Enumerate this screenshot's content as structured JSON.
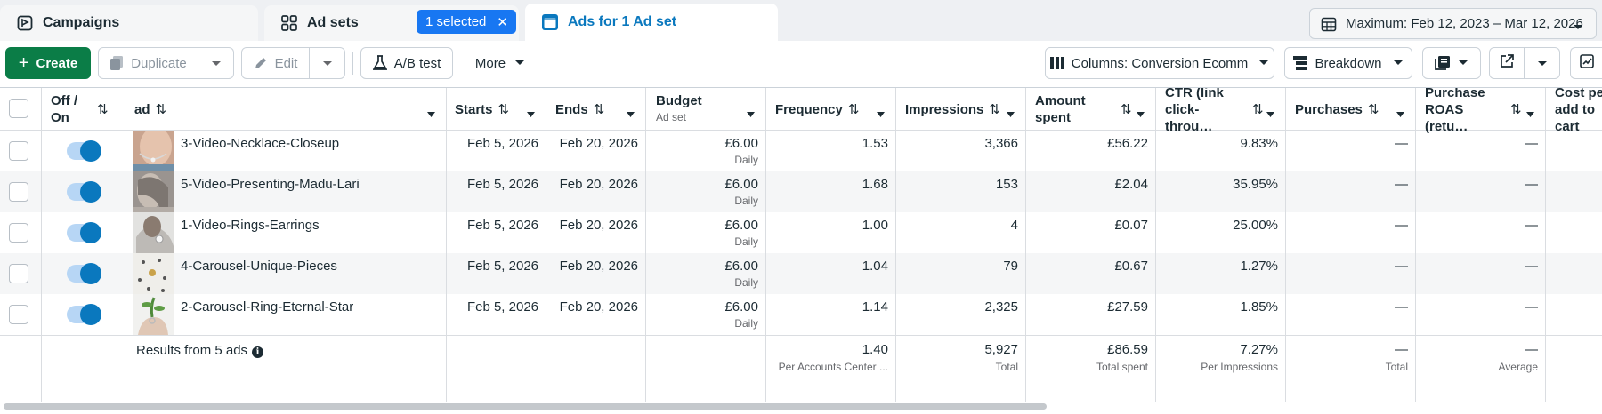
{
  "tabs": {
    "campaigns": "Campaigns",
    "ad_sets": "Ad sets",
    "selected_chip": "1 selected",
    "ads": "Ads for 1 Ad set"
  },
  "date_range": "Maximum: Feb 12, 2023 – Mar 12, 2026",
  "toolbar": {
    "create": "Create",
    "duplicate": "Duplicate",
    "edit": "Edit",
    "ab_test": "A/B test",
    "more": "More",
    "columns": "Columns: Conversion Ecomm",
    "breakdown": "Breakdown"
  },
  "columns": {
    "off_on": "Off / On",
    "ad": "ad",
    "starts": "Starts",
    "ends": "Ends",
    "budget": "Budget",
    "budget_sub": "Ad set",
    "frequency": "Frequency",
    "impressions": "Impressions",
    "amount_spent": "Amount spent",
    "ctr": "CTR (link click-throu…",
    "purchases": "Purchases",
    "purchase_roas": "Purchase ROAS (retu…",
    "cost_per_add_to_cart": "Cost per add to cart"
  },
  "rows": [
    {
      "on": true,
      "name": "3-Video-Necklace-Closeup",
      "starts": "Feb 5, 2026",
      "ends": "Feb 20, 2026",
      "budget": "£6.00",
      "budget_type": "Daily",
      "frequency": "1.53",
      "impressions": "3,366",
      "amount_spent": "£56.22",
      "ctr": "9.83%",
      "purchases": "—",
      "roas": "—"
    },
    {
      "on": true,
      "name": "5-Video-Presenting-Madu-Lari",
      "starts": "Feb 5, 2026",
      "ends": "Feb 20, 2026",
      "budget": "£6.00",
      "budget_type": "Daily",
      "frequency": "1.68",
      "impressions": "153",
      "amount_spent": "£2.04",
      "ctr": "35.95%",
      "purchases": "—",
      "roas": "—"
    },
    {
      "on": true,
      "name": "1-Video-Rings-Earrings",
      "starts": "Feb 5, 2026",
      "ends": "Feb 20, 2026",
      "budget": "£6.00",
      "budget_type": "Daily",
      "frequency": "1.00",
      "impressions": "4",
      "amount_spent": "£0.07",
      "ctr": "25.00%",
      "purchases": "—",
      "roas": "—"
    },
    {
      "on": true,
      "name": "4-Carousel-Unique-Pieces",
      "starts": "Feb 5, 2026",
      "ends": "Feb 20, 2026",
      "budget": "£6.00",
      "budget_type": "Daily",
      "frequency": "1.04",
      "impressions": "79",
      "amount_spent": "£0.67",
      "ctr": "1.27%",
      "purchases": "—",
      "roas": "—"
    },
    {
      "on": true,
      "name": "2-Carousel-Ring-Eternal-Star",
      "starts": "Feb 5, 2026",
      "ends": "Feb 20, 2026",
      "budget": "£6.00",
      "budget_type": "Daily",
      "frequency": "1.14",
      "impressions": "2,325",
      "amount_spent": "£27.59",
      "ctr": "1.85%",
      "purchases": "—",
      "roas": "—"
    }
  ],
  "totals": {
    "label": "Results from 5 ads",
    "frequency": "1.40",
    "frequency_sub": "Per Accounts Center ...",
    "impressions": "5,927",
    "impressions_sub": "Total",
    "amount_spent": "£86.59",
    "amount_spent_sub": "Total spent",
    "ctr": "7.27%",
    "ctr_sub": "Per Impressions",
    "purchases": "—",
    "purchases_sub": "Total",
    "roas": "—",
    "roas_sub": "Average"
  },
  "colors": {
    "accent_blue": "#0a78be",
    "create_green": "#0b7d47",
    "chip_blue": "#1877f2"
  }
}
